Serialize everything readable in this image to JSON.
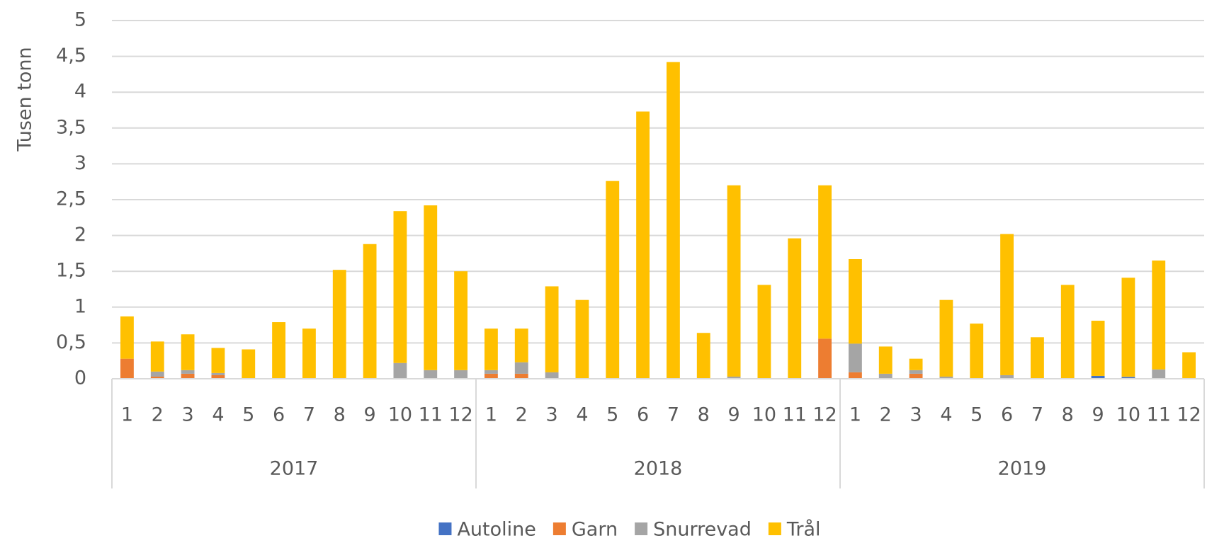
{
  "chart_data": {
    "type": "stacked_bar",
    "ylabel": "Tusen tonn",
    "categories": [
      "1",
      "2",
      "3",
      "4",
      "5",
      "6",
      "7",
      "8",
      "9",
      "10",
      "11",
      "12",
      "1",
      "2",
      "3",
      "4",
      "5",
      "6",
      "7",
      "8",
      "9",
      "10",
      "11",
      "12",
      "1",
      "2",
      "3",
      "4",
      "5",
      "6",
      "7",
      "8",
      "9",
      "10",
      "11",
      "12"
    ],
    "groups": [
      "2017",
      "2018",
      "2019"
    ],
    "series": [
      {
        "name": "Autoline",
        "color": "#4472c4",
        "values": [
          0,
          0,
          0,
          0,
          0,
          0,
          0,
          0,
          0,
          0,
          0,
          0,
          0,
          0,
          0,
          0,
          0,
          0,
          0,
          0,
          0,
          0,
          0,
          0,
          0,
          0,
          0,
          0,
          0,
          0,
          0,
          0,
          0.04,
          0.02,
          0,
          0
        ]
      },
      {
        "name": "Garn",
        "color": "#ed7d31",
        "values": [
          0.28,
          0.03,
          0.07,
          0.05,
          0,
          0,
          0,
          0,
          0,
          0,
          0,
          0,
          0.07,
          0.07,
          0,
          0,
          0,
          0,
          0,
          0,
          0,
          0,
          0,
          0.56,
          0.09,
          0,
          0.07,
          0,
          0,
          0,
          0,
          0,
          0,
          0,
          0,
          0
        ]
      },
      {
        "name": "Snurrevad",
        "color": "#a5a5a5",
        "values": [
          0,
          0.07,
          0.05,
          0.03,
          0,
          0,
          0,
          0,
          0,
          0.22,
          0.12,
          0.12,
          0.05,
          0.16,
          0.09,
          0,
          0,
          0,
          0,
          0,
          0.03,
          0,
          0,
          0,
          0.4,
          0.07,
          0.05,
          0.03,
          0,
          0.05,
          0,
          0,
          0,
          0.01,
          0.13,
          0
        ]
      },
      {
        "name": "Trål",
        "color": "#ffc000",
        "values": [
          0.59,
          0.42,
          0.5,
          0.35,
          0.41,
          0.79,
          0.7,
          1.52,
          1.88,
          2.12,
          2.3,
          1.38,
          0.58,
          0.47,
          1.2,
          1.1,
          2.76,
          3.73,
          4.42,
          0.64,
          2.67,
          1.31,
          1.96,
          2.14,
          1.18,
          0.38,
          0.16,
          1.07,
          0.77,
          1.97,
          0.58,
          1.31,
          0.77,
          1.38,
          1.52,
          0.37
        ]
      }
    ],
    "ylim": [
      0,
      5
    ],
    "yticks": [
      0,
      {
        "value": 0.5,
        "label": "0,5"
      },
      1,
      {
        "value": 1.5,
        "label": "1,5"
      },
      2,
      {
        "value": 2.5,
        "label": "2,5"
      },
      3,
      {
        "value": 3.5,
        "label": "3,5"
      },
      4,
      {
        "value": 4.5,
        "label": "4,5"
      },
      5
    ],
    "grid": true,
    "legend": "bottom"
  }
}
